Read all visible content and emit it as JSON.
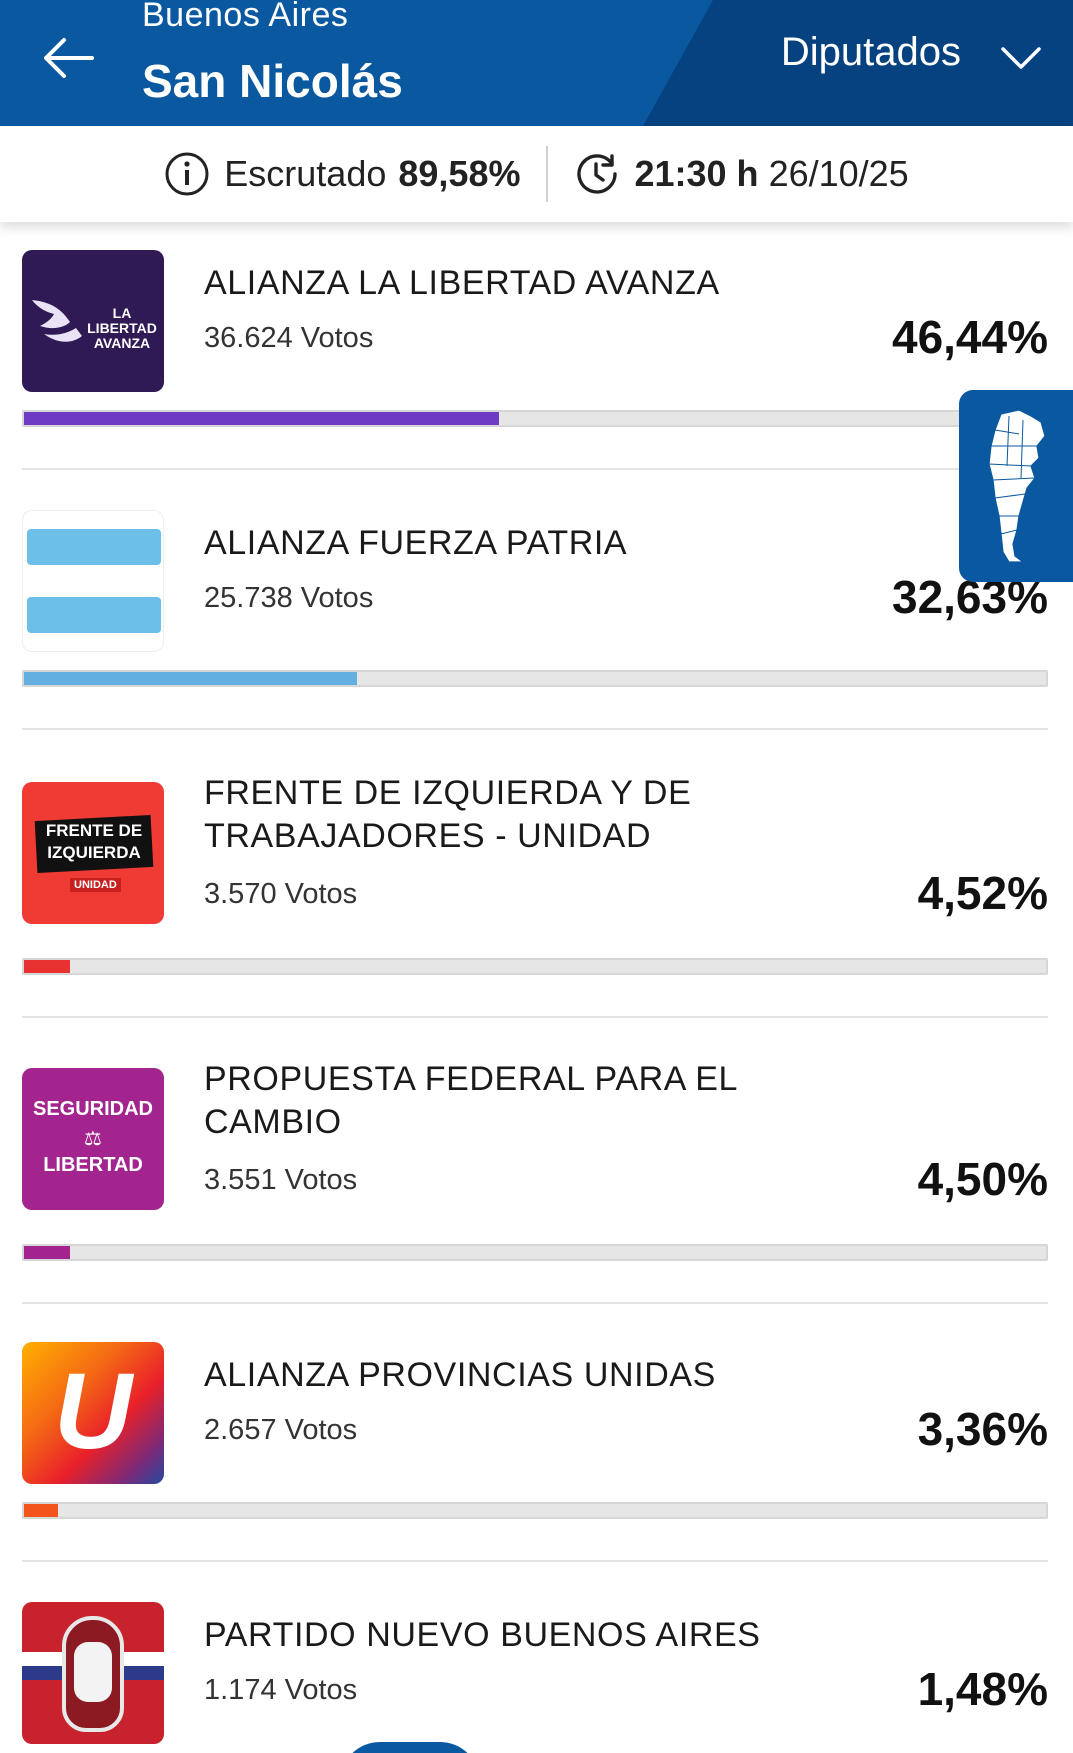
{
  "header": {
    "province": "Buenos Aires",
    "city": "San Nicolás",
    "category": "Diputados",
    "back_icon": "arrow-left-icon",
    "dropdown_icon": "chevron-down-icon"
  },
  "status": {
    "scrutiny_label": "Escrutado",
    "scrutiny_value": "89,58%",
    "time": "21:30 h",
    "date": "26/10/25"
  },
  "parties": [
    {
      "name": "ALIANZA LA LIBERTAD AVANZA",
      "votes": "36.624 Votos",
      "pct": "46,44%",
      "share": 46.44,
      "color": "#6e3bc4",
      "logo_text": [
        "LA",
        "LIBERTAD",
        "AVANZA"
      ]
    },
    {
      "name": "ALIANZA FUERZA PATRIA",
      "votes": "25.738 Votos",
      "pct": "32,63%",
      "share": 32.63,
      "color": "#63b0e0"
    },
    {
      "name": "FRENTE DE IZQUIERDA Y DE TRABAJADORES - UNIDAD",
      "votes": "3.570 Votos",
      "pct": "4,52%",
      "share": 4.52,
      "color": "#e8322f",
      "logo_text": [
        "FRENTE DE",
        "IZQUIERDA",
        "UNIDAD"
      ]
    },
    {
      "name": "PROPUESTA FEDERAL PARA EL CAMBIO",
      "votes": "3.551 Votos",
      "pct": "4,50%",
      "share": 4.5,
      "color": "#a3248f",
      "logo_text": [
        "SEGURIDAD",
        "LIBERTAD"
      ]
    },
    {
      "name": "ALIANZA PROVINCIAS UNIDAS",
      "votes": "2.657 Votos",
      "pct": "3,36%",
      "share": 3.36,
      "color": "#f2541c",
      "logo_text": [
        "U"
      ]
    },
    {
      "name": "PARTIDO NUEVO BUENOS AIRES",
      "votes": "1.174 Votos",
      "pct": "1,48%",
      "share": 1.48,
      "color": "#c8232c"
    }
  ],
  "colors": {
    "header": "#0a58a0",
    "header_dark": "#06427f"
  }
}
